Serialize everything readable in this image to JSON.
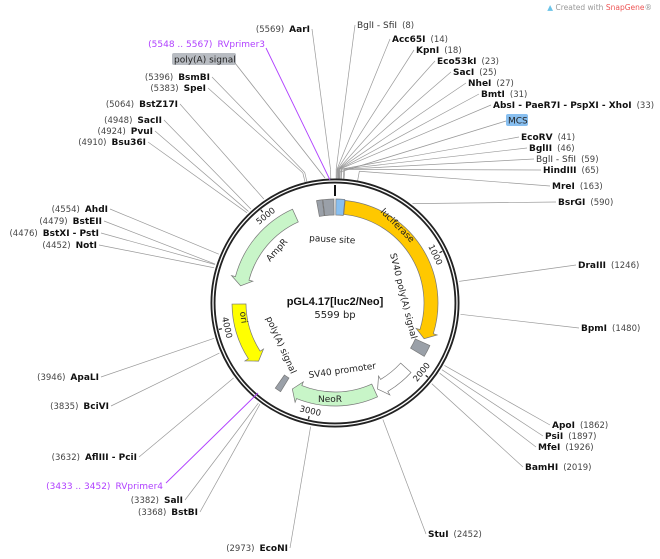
{
  "watermark": {
    "prefix": "Created with ",
    "brand": "SnapGene",
    "suffix": "®"
  },
  "plasmid": {
    "name": "pGL4.17[luc2/Neo]",
    "size_label": "5599 bp",
    "length": 5599
  },
  "ticks": [
    "1000",
    "2000",
    "3000",
    "4000",
    "5000"
  ],
  "colors": {
    "luciferase": "#ffc800",
    "ori": "#ffff00",
    "resistance": "#c8f5c8",
    "misc": "#9aa0a8",
    "mcs": "#88bff0",
    "primer": "#b040ff"
  },
  "features": [
    {
      "name": "luciferase",
      "start": 88,
      "end": 1740,
      "direction": "forward",
      "color": "#ffc800"
    },
    {
      "name": "SV40 poly(A) signal",
      "start": 1775,
      "end": 1880,
      "direction": "none",
      "color": "#9aa0a8"
    },
    {
      "name": "SV40 promoter",
      "start": 2060,
      "end": 2390,
      "direction": "forward",
      "color": "#ffffff"
    },
    {
      "name": "NeoR",
      "start": 2420,
      "end": 3210,
      "direction": "forward",
      "color": "#c8f5c8"
    },
    {
      "name": "poly(A) signal",
      "start": 3290,
      "end": 3345,
      "direction": "none",
      "color": "#9aa0a8"
    },
    {
      "name": "ori",
      "start": 3620,
      "end": 4190,
      "direction": "reverse",
      "color": "#ffff00"
    },
    {
      "name": "AmpR",
      "start": 4360,
      "end": 5220,
      "direction": "reverse",
      "color": "#c8f5c8"
    },
    {
      "name": "poly(A) signal",
      "start": 5440,
      "end": 5490,
      "direction": "none",
      "color": "#9aa0a8"
    },
    {
      "name": "pause site",
      "start": 5495,
      "end": 5590,
      "direction": "none",
      "color": "#9aa0a8"
    },
    {
      "name": "MCS",
      "start": 8,
      "end": 84,
      "direction": "none",
      "color": "#88bff0"
    }
  ],
  "boxed_labels": {
    "polyA_top": "poly(A) signal",
    "mcs": "MCS"
  },
  "primers": [
    {
      "name": "RVprimer3",
      "range": "(5548 .. 5567)"
    },
    {
      "name": "RVprimer4",
      "range": "(3433 .. 3452)"
    }
  ],
  "sites": [
    {
      "name": "AarI",
      "pos": "5569"
    },
    {
      "name": "BsmBI",
      "pos": "5396"
    },
    {
      "name": "SpeI",
      "pos": "5383"
    },
    {
      "name": "BstZ17I",
      "pos": "5064"
    },
    {
      "name": "SacII",
      "pos": "4948"
    },
    {
      "name": "PvuI",
      "pos": "4924"
    },
    {
      "name": "Bsu36I",
      "pos": "4910"
    },
    {
      "name": "AhdI",
      "pos": "4554"
    },
    {
      "name": "BstEII",
      "pos": "4479"
    },
    {
      "name": "BstXI - PstI",
      "pos": "4476"
    },
    {
      "name": "NotI",
      "pos": "4452"
    },
    {
      "name": "ApaLI",
      "pos": "3946"
    },
    {
      "name": "BciVI",
      "pos": "3835"
    },
    {
      "name": "AflIII - PciI",
      "pos": "3632"
    },
    {
      "name": "SalI",
      "pos": "3382"
    },
    {
      "name": "BstBI",
      "pos": "3368"
    },
    {
      "name": "EcoNI",
      "pos": "2973"
    },
    {
      "name": "BglI - SfiI",
      "pos": "8",
      "unique": false
    },
    {
      "name": "Acc65I",
      "pos": "14"
    },
    {
      "name": "KpnI",
      "pos": "18"
    },
    {
      "name": "Eco53kI",
      "pos": "23"
    },
    {
      "name": "SacI",
      "pos": "25"
    },
    {
      "name": "NheI",
      "pos": "27"
    },
    {
      "name": "BmtI",
      "pos": "31"
    },
    {
      "name": "AbsI - PaeR7I - PspXI - XhoI",
      "pos": "33"
    },
    {
      "name": "EcoRV",
      "pos": "41"
    },
    {
      "name": "BglII",
      "pos": "46"
    },
    {
      "name": "BglI - SfiI",
      "pos": "59",
      "unique": false
    },
    {
      "name": "HindIII",
      "pos": "65"
    },
    {
      "name": "MreI",
      "pos": "163"
    },
    {
      "name": "BsrGI",
      "pos": "590"
    },
    {
      "name": "DraIII",
      "pos": "1246"
    },
    {
      "name": "BpmI",
      "pos": "1480"
    },
    {
      "name": "ApoI",
      "pos": "1862"
    },
    {
      "name": "PsiI",
      "pos": "1897"
    },
    {
      "name": "MfeI",
      "pos": "1926"
    },
    {
      "name": "BamHI",
      "pos": "2019"
    },
    {
      "name": "StuI",
      "pos": "2452"
    }
  ]
}
